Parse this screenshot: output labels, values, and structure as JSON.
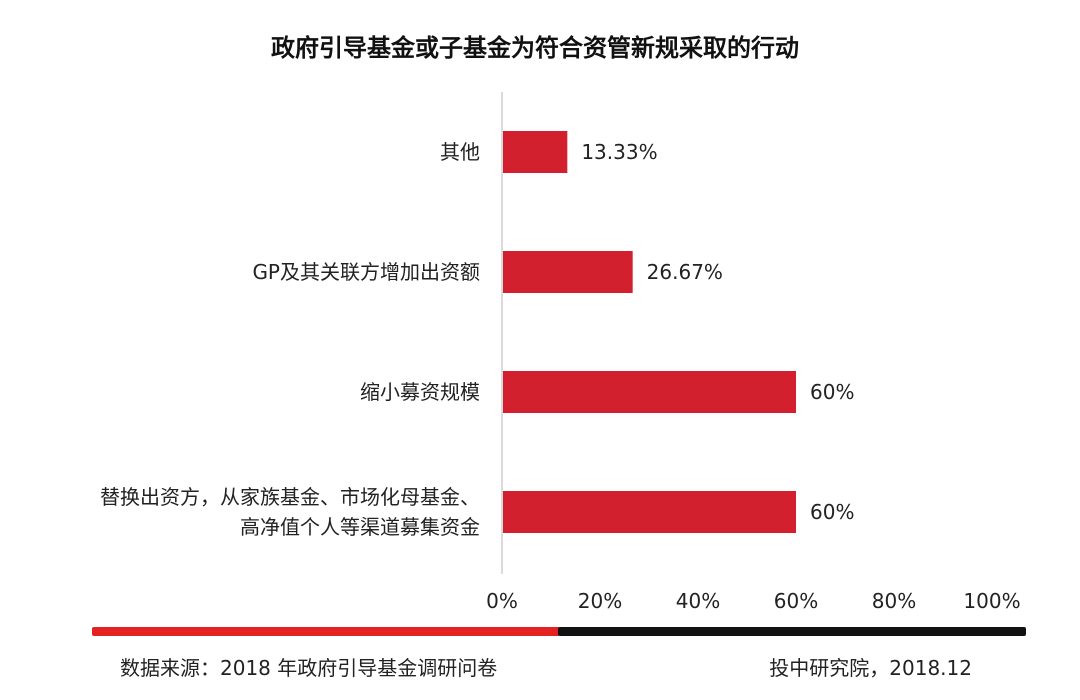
{
  "colors": {
    "bar": "#d3202e",
    "axis_line": "#cfcfcf",
    "footer_bar_left": "#e52222",
    "footer_bar_right": "#111111"
  },
  "chart_data": {
    "type": "bar",
    "orientation": "horizontal",
    "title": "政府引导基金或子基金为符合资管新规采取的行动",
    "categories": [
      "其他",
      "GP及其关联方增加出资额",
      "缩小募资规模",
      "替换出资方，从家族基金、市场化母基金、高净值个人等渠道募集资金"
    ],
    "category_lines": [
      [
        "其他"
      ],
      [
        "GP及其关联方增加出资额"
      ],
      [
        "缩小募资规模"
      ],
      [
        "替换出资方，从家族基金、市场化母基金、",
        "高净值个人等渠道募集资金"
      ]
    ],
    "values": [
      13.33,
      26.67,
      60,
      60
    ],
    "value_labels": [
      "13.33%",
      "26.67%",
      "60%",
      "60%"
    ],
    "xlim": [
      0,
      100
    ],
    "x_ticks": [
      0,
      20,
      40,
      60,
      80,
      100
    ],
    "x_tick_labels": [
      "0%",
      "20%",
      "40%",
      "60%",
      "80%",
      "100%"
    ],
    "grid": false
  },
  "footer": {
    "source": "数据来源：2018 年政府引导基金调研问卷",
    "credit": "投中研究院，2018.12"
  }
}
